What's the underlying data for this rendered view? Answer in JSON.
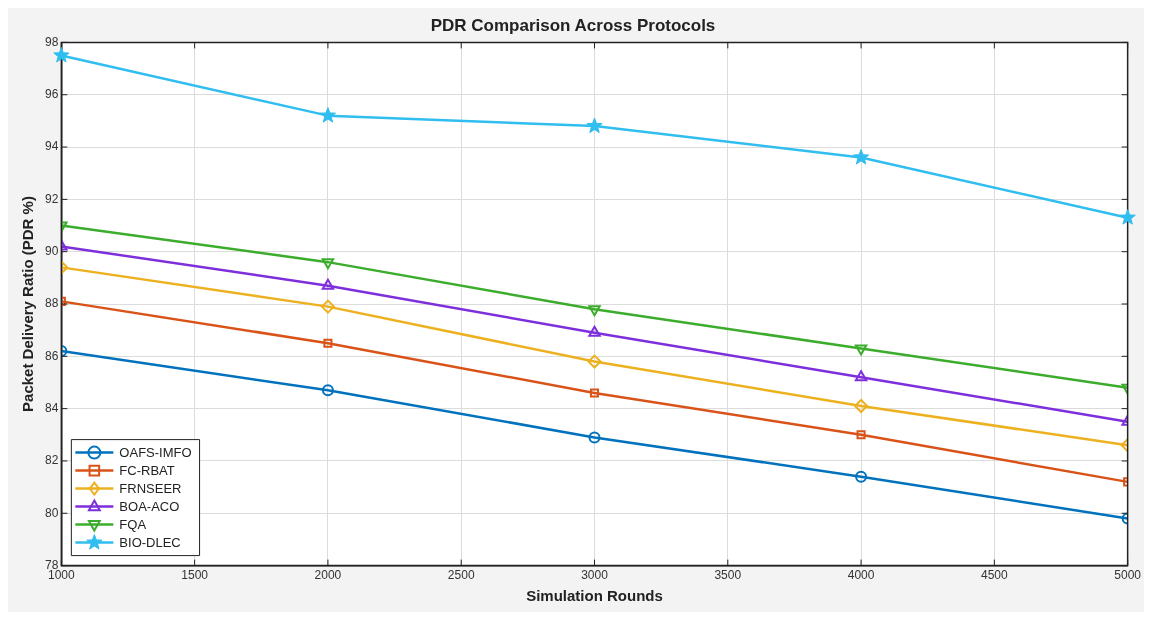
{
  "chart_data": {
    "type": "line",
    "title": "PDR Comparison Across Protocols",
    "xlabel": "Simulation Rounds",
    "ylabel": "Packet Delivery Ratio (PDR %)",
    "x": [
      1000,
      2000,
      3000,
      4000,
      5000
    ],
    "xlim": [
      1000,
      5000
    ],
    "xticks": [
      1000,
      1500,
      2000,
      2500,
      3000,
      3500,
      4000,
      4500,
      5000
    ],
    "ylim": [
      78,
      98
    ],
    "yticks": [
      78,
      80,
      82,
      84,
      86,
      88,
      90,
      92,
      94,
      96,
      98
    ],
    "grid": true,
    "legend": "bottom left",
    "line_style": "solid",
    "series": [
      {
        "name": "OAFS-IMFO",
        "color": "#0072bd",
        "marker": "circle",
        "values": [
          86.2,
          84.7,
          82.9,
          81.4,
          79.8
        ]
      },
      {
        "name": "FC-RBAT",
        "color": "#d95319",
        "marker": "square",
        "values": [
          88.1,
          86.5,
          84.6,
          83.0,
          81.2
        ]
      },
      {
        "name": "FRNSEER",
        "color": "#edb120",
        "marker": "diamond",
        "values": [
          89.4,
          87.9,
          85.8,
          84.1,
          82.6
        ]
      },
      {
        "name": "BOA-ACO",
        "color": "#7e2fdc",
        "marker": "triangle",
        "values": [
          90.2,
          88.7,
          86.9,
          85.2,
          83.5
        ]
      },
      {
        "name": "FQA",
        "color": "#3cac2c",
        "marker": "triangle_down",
        "values": [
          91.0,
          89.6,
          87.8,
          86.3,
          84.8
        ]
      },
      {
        "name": "BIO-DLEC",
        "color": "#30bdef",
        "marker": "star",
        "values": [
          97.5,
          95.2,
          94.8,
          93.6,
          91.3
        ]
      }
    ]
  }
}
